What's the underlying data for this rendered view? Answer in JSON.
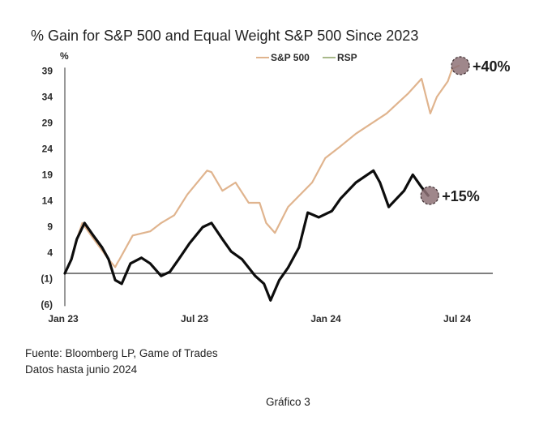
{
  "chart_data": {
    "type": "line",
    "title": "% Gain for S&P 500 and Equal Weight S&P 500 Since 2023",
    "ylabel": "%",
    "xlabel": "",
    "ylim": [
      -6,
      39
    ],
    "y_ticks": [
      39,
      34,
      29,
      24,
      19,
      14,
      9,
      4,
      -1,
      -6
    ],
    "y_tick_labels": [
      "39",
      "34",
      "29",
      "24",
      "19",
      "14",
      "9",
      "4",
      "(1)",
      "(6)"
    ],
    "x_ticks": [
      0,
      6,
      12,
      18
    ],
    "x_tick_labels": [
      "Jan 23",
      "Jul 23",
      "Jan 24",
      "Jul 24"
    ],
    "x_unit": "months since Jan 2023",
    "xlim": [
      0,
      20
    ],
    "legend": {
      "placement": "top-center",
      "entries": [
        "S&P 500",
        "RSP"
      ]
    },
    "series": [
      {
        "name": "S&P 500",
        "color": "#e0b48e",
        "x": [
          0,
          0.3,
          0.55,
          0.8,
          1.2,
          1.6,
          2.0,
          2.3,
          2.4,
          2.5,
          3.1,
          3.9,
          4.4,
          5.0,
          5.6,
          6.5,
          6.7,
          7.2,
          7.8,
          8.4,
          8.9,
          9.2,
          9.6,
          10.2,
          11.3,
          11.9,
          12.6,
          13.3,
          14.7,
          15.7,
          16.3,
          16.7,
          17.0,
          17.5,
          17.7,
          18.0
        ],
        "values": [
          0,
          2.7,
          6.6,
          9.7,
          7.3,
          5.0,
          2.7,
          1.2,
          2.0,
          2.7,
          7.3,
          8.1,
          9.7,
          11.2,
          15.2,
          19.8,
          19.5,
          15.9,
          17.5,
          13.6,
          13.6,
          9.7,
          7.8,
          12.8,
          17.5,
          22.2,
          24.5,
          26.9,
          30.8,
          34.7,
          37.5,
          30.8,
          34.0,
          37.0,
          39.4,
          40.0
        ]
      },
      {
        "name": "RSP",
        "color": "#0d0d0d",
        "x": [
          0,
          0.3,
          0.55,
          0.9,
          1.3,
          1.7,
          2.0,
          2.3,
          2.6,
          3.0,
          3.5,
          3.9,
          4.4,
          4.8,
          5.2,
          5.7,
          6.3,
          6.7,
          7.2,
          7.6,
          8.1,
          8.7,
          9.1,
          9.4,
          9.8,
          10.2,
          10.7,
          11.1,
          11.6,
          12.2,
          12.6,
          13.3,
          14.1,
          14.4,
          14.8,
          15.5,
          15.9,
          16.3,
          16.6
        ],
        "values": [
          0,
          2.7,
          6.6,
          9.7,
          7.3,
          5.0,
          2.7,
          -1.3,
          -2.0,
          1.9,
          3.0,
          1.9,
          -0.5,
          0.3,
          2.7,
          5.8,
          8.9,
          9.7,
          6.6,
          4.2,
          2.7,
          -0.5,
          -2.0,
          -5.2,
          -1.3,
          1.1,
          5.0,
          11.7,
          10.8,
          12.0,
          14.4,
          17.5,
          19.8,
          17.5,
          12.8,
          15.9,
          19.0,
          16.6,
          15.0
        ]
      }
    ],
    "annotations": [
      {
        "label": "+40%",
        "series": "S&P 500",
        "at_x": 18.0,
        "at_y": 40.0
      },
      {
        "label": "+15%",
        "series": "RSP",
        "at_x": 16.6,
        "at_y": 15.0
      }
    ],
    "marker_color": "#8e7277",
    "zero_line_color": "#555555"
  },
  "footer": {
    "source": "Fuente: Bloomberg LP, Game of Trades",
    "data_note": "Datos hasta junio 2024",
    "caption": "Gráfico 3"
  }
}
